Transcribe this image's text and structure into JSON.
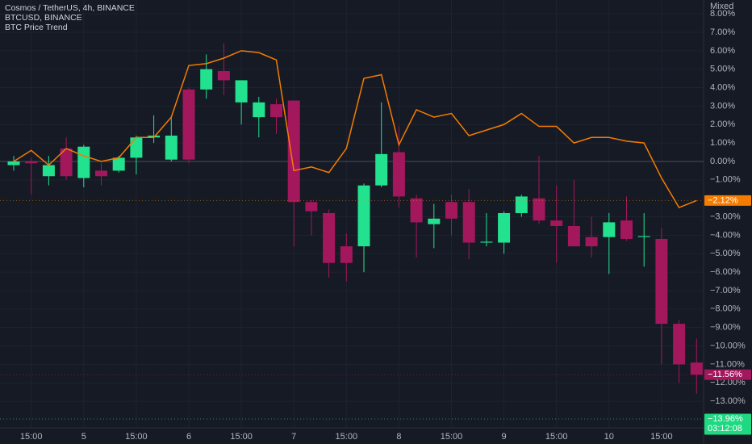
{
  "chart_data": {
    "type": "candlestick",
    "title": "Cosmos / TetherUS, 4h, BINANCE",
    "symbol_line": "BTCUSD, BINANCE",
    "scale_mode": "Mixed",
    "categories": [
      null,
      "15:00",
      null,
      null,
      "5",
      null,
      null,
      "15:00",
      null,
      null,
      "6",
      null,
      null,
      "15:00",
      null,
      null,
      "7",
      null,
      null,
      "15:00",
      null,
      null,
      "8",
      null,
      null,
      "15:00",
      null,
      null,
      "9",
      null,
      null,
      "15:00",
      null,
      null,
      "10",
      null,
      null,
      "15:00",
      null,
      null
    ],
    "open": [
      -0.2,
      0.0,
      -0.8,
      0.7,
      -0.9,
      -0.5,
      -0.5,
      0.2,
      1.3,
      0.1,
      3.9,
      3.9,
      4.9,
      3.2,
      2.4,
      3.1,
      3.3,
      -2.2,
      -2.8,
      -4.6,
      -4.6,
      -1.3,
      0.5,
      -2.0,
      -3.4,
      -2.2,
      -2.2,
      -4.4,
      -4.4,
      -2.8,
      -2.0,
      -3.2,
      -3.5,
      -4.1,
      -4.1,
      -3.2,
      -4.1,
      -4.2,
      -8.8,
      -10.9
    ],
    "high": [
      0.3,
      0.2,
      0.3,
      1.3,
      0.9,
      -0.1,
      0.3,
      1.4,
      2.5,
      2.4,
      4.0,
      5.8,
      6.4,
      4.4,
      3.5,
      3.4,
      3.3,
      -2.1,
      -2.6,
      -3.9,
      -1.2,
      3.2,
      1.9,
      -1.8,
      -2.3,
      -1.8,
      -1.5,
      -2.8,
      -2.7,
      -1.8,
      0.3,
      -1.3,
      -1.0,
      -3.0,
      -2.8,
      -1.9,
      -2.8,
      -3.6,
      -8.6,
      -9.6
    ],
    "low": [
      -0.5,
      -1.8,
      -1.3,
      -1.0,
      -1.4,
      -1.3,
      -0.6,
      -0.7,
      1.0,
      0.0,
      -0.1,
      3.4,
      3.6,
      2.0,
      1.3,
      1.5,
      -4.6,
      -4.0,
      -6.3,
      -6.5,
      -6.0,
      -1.4,
      -2.5,
      -5.2,
      -4.7,
      -4.0,
      -5.3,
      -4.6,
      -5.0,
      -3.0,
      -3.4,
      -5.5,
      -4.6,
      -5.2,
      -6.1,
      -4.3,
      -5.7,
      -11.0,
      -12.0,
      -12.6
    ],
    "close": [
      0.0,
      -0.1,
      -0.2,
      -0.8,
      0.8,
      -0.8,
      0.2,
      1.3,
      1.4,
      1.4,
      0.1,
      5.0,
      4.4,
      4.4,
      3.2,
      2.4,
      -2.2,
      -2.7,
      -5.5,
      -5.5,
      -1.3,
      0.4,
      -1.9,
      -3.3,
      -3.1,
      -3.1,
      -4.4,
      -4.35,
      -2.8,
      -1.9,
      -3.2,
      -3.5,
      -4.6,
      -4.6,
      -3.3,
      -4.2,
      -4.05,
      -8.8,
      -11.0,
      -11.56
    ],
    "up_color": "#22e28f",
    "down_color": "#a3175d",
    "series": [
      {
        "name": "BTC Price Trend",
        "color": "#f57c00",
        "values": [
          0.0,
          0.6,
          -0.2,
          0.7,
          0.3,
          0.0,
          0.2,
          1.3,
          1.3,
          2.4,
          5.2,
          5.3,
          5.6,
          6.0,
          5.9,
          5.5,
          -0.5,
          -0.3,
          -0.6,
          0.7,
          4.5,
          4.7,
          0.9,
          2.8,
          2.4,
          2.6,
          1.4,
          1.7,
          2.0,
          2.6,
          1.9,
          1.9,
          1.0,
          1.3,
          1.3,
          1.1,
          1.0,
          -0.9,
          -2.5,
          -2.12
        ]
      }
    ],
    "ylim": [
      -14.44,
      8.75
    ],
    "yticks": [
      {
        "value": 8,
        "label": "8.00%"
      },
      {
        "value": 7,
        "label": "7.00%"
      },
      {
        "value": 6,
        "label": "6.00%"
      },
      {
        "value": 5,
        "label": "5.00%"
      },
      {
        "value": 4,
        "label": "4.00%"
      },
      {
        "value": 3,
        "label": "3.00%"
      },
      {
        "value": 2,
        "label": "2.00%"
      },
      {
        "value": 1,
        "label": "1.00%"
      },
      {
        "value": 0,
        "label": "0.00%"
      },
      {
        "value": -1,
        "label": "−1.00%"
      },
      {
        "value": -3,
        "label": "−3.00%"
      },
      {
        "value": -4,
        "label": "−4.00%"
      },
      {
        "value": -5,
        "label": "−5.00%"
      },
      {
        "value": -6,
        "label": "−6.00%"
      },
      {
        "value": -7,
        "label": "−7.00%"
      },
      {
        "value": -8,
        "label": "−8.00%"
      },
      {
        "value": -9,
        "label": "−9.00%"
      },
      {
        "value": -10,
        "label": "−10.00%"
      },
      {
        "value": -11,
        "label": "−11.00%"
      },
      {
        "value": -12,
        "label": "−12.00%"
      },
      {
        "value": -13,
        "label": "−13.00%"
      }
    ],
    "grid": true,
    "price_labels": [
      {
        "value": -2.12,
        "label": "−2.12%",
        "color": "#f57c00"
      },
      {
        "value": -11.56,
        "label": "−11.56%",
        "color": "#a3175d"
      },
      {
        "value": -13.96,
        "label": "−13.96%",
        "color": "#1fd882",
        "countdown": "03:12:08"
      }
    ]
  }
}
